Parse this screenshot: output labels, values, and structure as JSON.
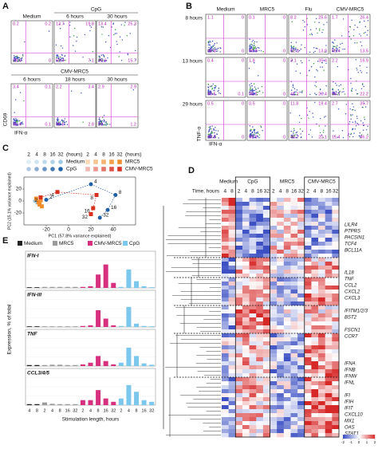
{
  "panel_a": {
    "label": "A",
    "y_axis": "CD69",
    "x_axis": "IFN-α",
    "top_group": "CpG",
    "bottom_group": "CMV-MRC5",
    "top_plots": [
      {
        "title": "Medium",
        "quadrants": [
          0.2,
          0.2,
          99.6,
          0
        ]
      },
      {
        "title": "6 hours",
        "quadrants": [
          13.7,
          19.8,
          59.4,
          7.1
        ]
      },
      {
        "title": "30 hours",
        "quadrants": [
          13.4,
          25.3,
          45.6,
          15.7
        ]
      }
    ],
    "bottom_plots": [
      {
        "title": "6 hours",
        "quadrants": [
          3.4,
          0.1,
          96.4,
          0.1
        ]
      },
      {
        "title": "18 hours",
        "quadrants": [
          2.2,
          3.4,
          91.6,
          2.8
        ]
      },
      {
        "title": "30 hours",
        "quadrants": [
          2.9,
          2.9,
          93,
          1.2
        ]
      }
    ]
  },
  "panel_b": {
    "label": "B",
    "y_axis": "TNF-α",
    "x_axis": "IFN-α",
    "columns": [
      "Medium",
      "MRC5",
      "Flu",
      "CMV-MRC5"
    ],
    "rows": [
      {
        "title": "8 hours",
        "plots": [
          [
            1.1,
            0,
            98.9,
            0
          ],
          [
            0.1,
            0,
            99.9,
            0
          ],
          [
            8.2,
            25.6,
            52.3,
            13.9
          ],
          [
            1.7,
            26.4,
            58.4,
            13.5
          ]
        ]
      },
      {
        "title": "13 hours",
        "plots": [
          [
            0.4,
            0,
            99.5,
            0.1
          ],
          [
            1.8,
            0,
            98.2,
            0
          ],
          [
            3.1,
            35.4,
            41.1,
            20.4
          ],
          [
            2.2,
            16.9,
            58.7,
            22.2
          ]
        ]
      },
      {
        "title": "29 hours",
        "plots": [
          [
            0.5,
            0,
            99.5,
            0
          ],
          [
            0.5,
            0,
            99.5,
            0
          ],
          [
            11.8,
            19.4,
            48.7,
            20.1
          ],
          [
            2.7,
            35.7,
            15.4,
            46.2
          ]
        ]
      }
    ]
  },
  "panel_c": {
    "label": "C",
    "type": "scatter",
    "hours": [
      2,
      4,
      8,
      16,
      32
    ],
    "hours_unit": "(hours)",
    "x_label": "PC1 (57.8% variance explained)",
    "y_label": "PC2 (15.1% variance explained)",
    "xlim": [
      -40,
      60
    ],
    "xticks": [
      -20,
      0,
      20,
      40
    ],
    "ylim": [
      -40,
      40
    ],
    "yticks": [
      -20,
      0,
      20
    ],
    "series": [
      {
        "name": "Medium",
        "color": "#9ecae1",
        "shape": "circle",
        "x": [
          -30,
          -28
        ],
        "y": [
          0,
          -3
        ]
      },
      {
        "name": "CpG",
        "color": "#1f5fa8",
        "shape": "circle",
        "x": [
          -20,
          20,
          42,
          35,
          28
        ],
        "y": [
          2,
          28,
          10,
          -15,
          -28
        ]
      },
      {
        "name": "MRC5",
        "color": "#f08c2a",
        "shape": "square",
        "x": [
          -29,
          -27,
          -25,
          -26,
          -24
        ],
        "y": [
          4,
          -2,
          1,
          -6,
          -9
        ]
      },
      {
        "name": "CMV-MRC5",
        "color": "#d7301f",
        "shape": "square",
        "x": [
          -25,
          -10,
          25,
          22,
          20
        ],
        "y": [
          6,
          15,
          10,
          -12,
          -22
        ]
      }
    ]
  },
  "panel_d": {
    "label": "D",
    "time_label": "Time, hours",
    "groups": [
      {
        "name": "Medium",
        "hours": [
          4,
          8
        ]
      },
      {
        "name": "CpG",
        "hours": [
          2,
          4,
          8,
          16,
          32
        ]
      },
      {
        "name": "MRC5",
        "hours": [
          2,
          4,
          8,
          16,
          32
        ]
      },
      {
        "name": "CMV-MRC5",
        "hours": [
          2,
          4,
          8,
          16,
          32
        ]
      }
    ],
    "gene_blocks": [
      [
        "LILR4",
        "PTPRS",
        "PACSIN1",
        "TCF4",
        "BCL11A"
      ],
      [
        "IL18",
        "TNF",
        "CCL2",
        "CXCL2",
        "CXCL3"
      ],
      [
        "IFITM1/2/3",
        "BST2"
      ],
      [
        "FSCN1",
        "CCR7"
      ],
      [
        "IFNA",
        "IFNB",
        "IFNW",
        "IFNL"
      ],
      [
        "IFI",
        "IFIH",
        "IFIT",
        "CXCL10",
        "MX1",
        "OAS",
        "STAT1"
      ]
    ],
    "scale_ticks": [
      -2,
      -1,
      0,
      1,
      2
    ]
  },
  "panel_e": {
    "label": "E",
    "type": "bar",
    "y_label": "Expression, % of total",
    "x_label": "Stimulation length, hours",
    "categories": [
      4,
      8,
      2,
      4,
      8,
      16,
      32,
      2,
      4,
      8,
      16,
      32,
      2,
      4,
      8,
      16,
      32
    ],
    "ylim": [
      0,
      100
    ],
    "series": [
      {
        "name": "Medium",
        "color": "#222222"
      },
      {
        "name": "MRC5",
        "color": "#9a9a9a"
      },
      {
        "name": "CMV-MRC5",
        "color": "#d6307f"
      },
      {
        "name": "CpG",
        "color": "#7cc8ec"
      }
    ],
    "subplots": [
      {
        "title": "IFN-I",
        "values": [
          [
            2,
            2,
            null,
            null,
            null,
            null,
            null,
            null,
            null,
            null,
            null,
            null,
            null,
            null,
            null,
            null,
            null
          ],
          [
            null,
            null,
            3,
            3,
            3,
            3,
            3,
            null,
            null,
            null,
            null,
            null,
            null,
            null,
            null,
            null,
            null
          ],
          [
            null,
            null,
            null,
            null,
            null,
            null,
            null,
            3,
            5,
            40,
            70,
            15,
            null,
            null,
            null,
            null,
            null
          ],
          [
            null,
            null,
            null,
            null,
            null,
            null,
            null,
            null,
            null,
            null,
            null,
            null,
            3,
            55,
            20,
            5,
            2
          ]
        ]
      },
      {
        "title": "IFN-III",
        "values": [
          [
            2,
            2,
            null,
            null,
            null,
            null,
            null,
            null,
            null,
            null,
            null,
            null,
            null,
            null,
            null,
            null,
            null
          ],
          [
            null,
            null,
            2,
            2,
            2,
            2,
            2,
            null,
            null,
            null,
            null,
            null,
            null,
            null,
            null,
            null,
            null
          ],
          [
            null,
            null,
            null,
            null,
            null,
            null,
            null,
            3,
            5,
            50,
            25,
            5,
            null,
            null,
            null,
            null,
            null
          ],
          [
            null,
            null,
            null,
            null,
            null,
            null,
            null,
            null,
            null,
            null,
            null,
            null,
            3,
            60,
            10,
            3,
            2
          ]
        ]
      },
      {
        "title": "TNF",
        "values": [
          [
            3,
            3,
            null,
            null,
            null,
            null,
            null,
            null,
            null,
            null,
            null,
            null,
            null,
            null,
            null,
            null,
            null
          ],
          [
            null,
            null,
            3,
            4,
            4,
            3,
            3,
            null,
            null,
            null,
            null,
            null,
            null,
            null,
            null,
            null,
            null
          ],
          [
            null,
            null,
            null,
            null,
            null,
            null,
            null,
            5,
            10,
            30,
            15,
            5,
            null,
            null,
            null,
            null,
            null
          ],
          [
            null,
            null,
            null,
            null,
            null,
            null,
            null,
            null,
            null,
            null,
            null,
            null,
            10,
            55,
            30,
            8,
            4
          ]
        ]
      },
      {
        "title": "CCL3/4/5",
        "values": [
          [
            3,
            3,
            null,
            null,
            null,
            null,
            null,
            null,
            null,
            null,
            null,
            null,
            null,
            null,
            null,
            null,
            null
          ],
          [
            null,
            null,
            8,
            4,
            3,
            3,
            3,
            null,
            null,
            null,
            null,
            null,
            null,
            null,
            null,
            null,
            null
          ],
          [
            null,
            null,
            null,
            null,
            null,
            null,
            null,
            15,
            15,
            45,
            20,
            10,
            null,
            null,
            null,
            null,
            null
          ],
          [
            null,
            null,
            null,
            null,
            null,
            null,
            null,
            null,
            null,
            null,
            null,
            null,
            20,
            60,
            40,
            15,
            10
          ]
        ]
      }
    ]
  }
}
